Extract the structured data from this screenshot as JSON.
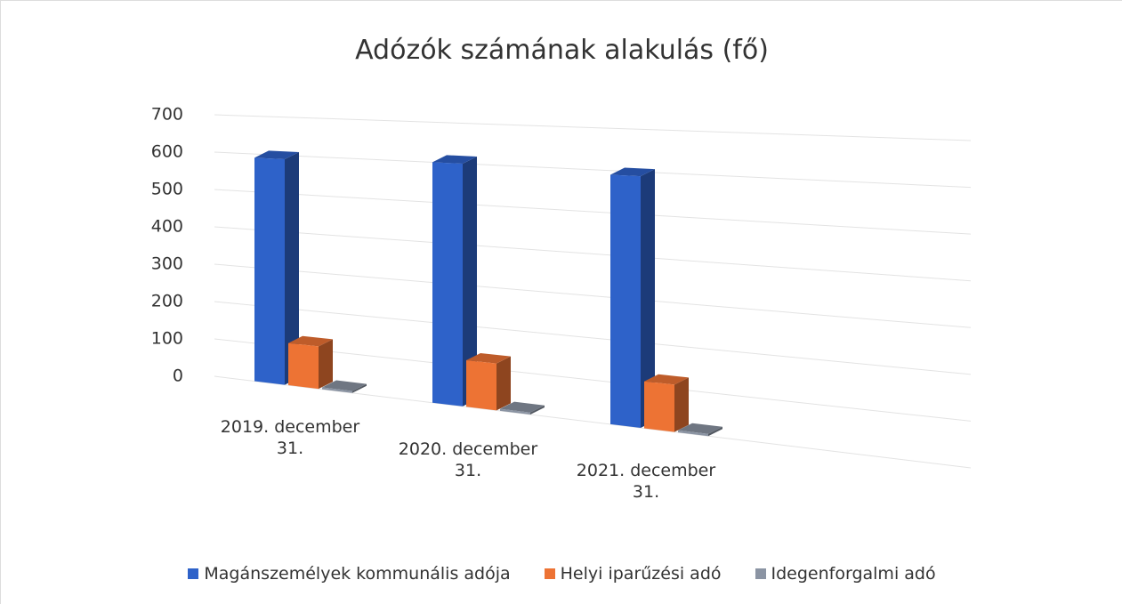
{
  "chart_data": {
    "type": "bar3d",
    "title": "Adózók számának alakulás (fő)",
    "categories": [
      "2019. december 31.",
      "2020. december 31.",
      "2021. december 31."
    ],
    "series": [
      {
        "name": "Magánszemélyek kommunális adója",
        "color": "#2e62c9",
        "values": [
          590,
          600,
          590
        ]
      },
      {
        "name": "Helyi iparűzési adó",
        "color": "#ed7334",
        "values": [
          110,
          115,
          110
        ]
      },
      {
        "name": "Idegenforgalmi adó",
        "color": "#8b94a3",
        "values": [
          5,
          5,
          5
        ]
      }
    ],
    "ylim": [
      0,
      700
    ],
    "yticks": [
      0,
      100,
      200,
      300,
      400,
      500,
      600,
      700
    ],
    "grid": true,
    "legend": "bottom"
  }
}
